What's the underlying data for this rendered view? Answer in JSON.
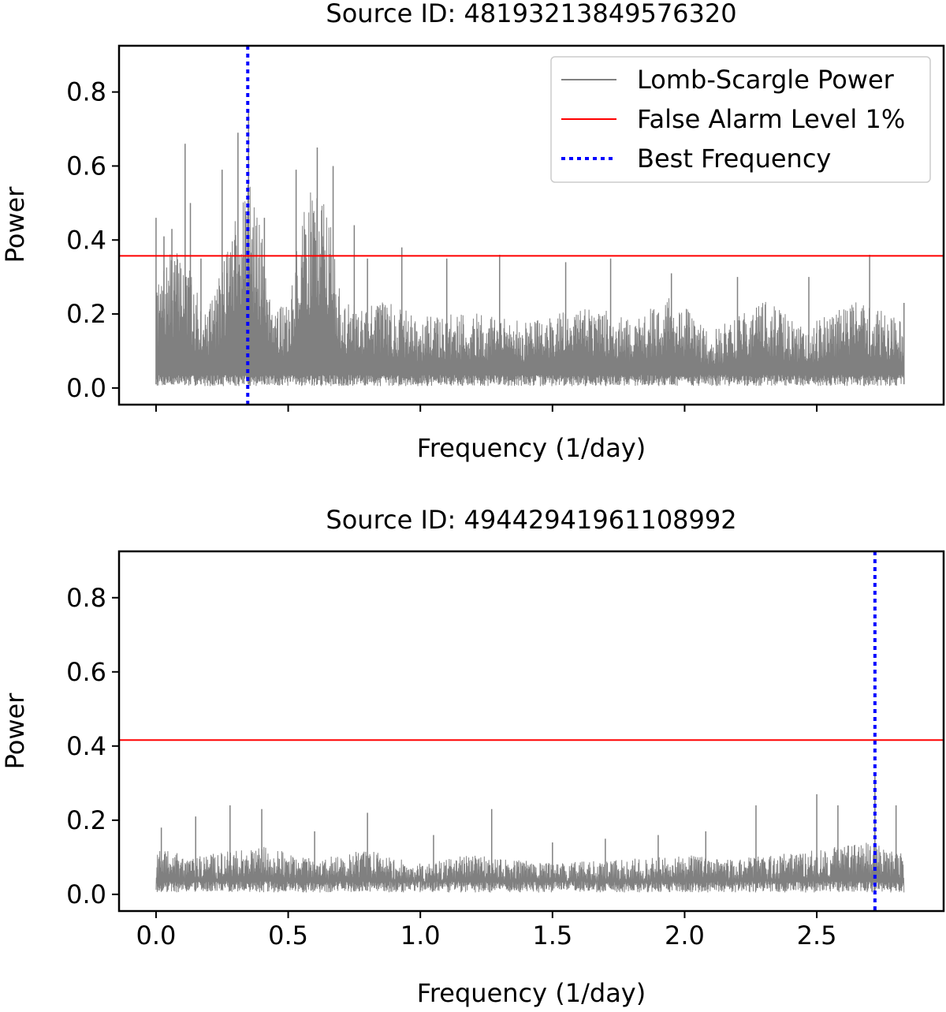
{
  "chart_data": [
    {
      "type": "line",
      "title": "Source ID: 48193213849576320",
      "xlabel": "Frequency (1/day)",
      "ylabel": "Power",
      "xlim": [
        -0.14,
        2.98
      ],
      "ylim": [
        -0.045,
        0.925
      ],
      "xticks": [
        0.0,
        0.5,
        1.0,
        1.5,
        2.0,
        2.5
      ],
      "xticklabels_visible": false,
      "yticks": [
        0.0,
        0.2,
        0.4,
        0.6,
        0.8
      ],
      "ytick_labels": [
        "0.0",
        "0.2",
        "0.4",
        "0.6",
        "0.8"
      ],
      "grid": false,
      "legend_position": "top-right",
      "series": [
        {
          "name": "Lomb-Scargle Power",
          "color": "#808080",
          "x_range": [
            0.0,
            2.83
          ],
          "peaks": [
            {
              "x": 0.0,
              "y": 0.46
            },
            {
              "x": 0.03,
              "y": 0.41
            },
            {
              "x": 0.06,
              "y": 0.43
            },
            {
              "x": 0.11,
              "y": 0.66
            },
            {
              "x": 0.13,
              "y": 0.5
            },
            {
              "x": 0.17,
              "y": 0.35
            },
            {
              "x": 0.25,
              "y": 0.59
            },
            {
              "x": 0.31,
              "y": 0.69
            },
            {
              "x": 0.35,
              "y": 0.75
            },
            {
              "x": 0.41,
              "y": 0.46
            },
            {
              "x": 0.53,
              "y": 0.59
            },
            {
              "x": 0.61,
              "y": 0.65
            },
            {
              "x": 0.67,
              "y": 0.6
            },
            {
              "x": 0.75,
              "y": 0.44
            },
            {
              "x": 0.8,
              "y": 0.35
            },
            {
              "x": 0.93,
              "y": 0.38
            },
            {
              "x": 1.1,
              "y": 0.35
            },
            {
              "x": 1.3,
              "y": 0.36
            },
            {
              "x": 1.55,
              "y": 0.34
            },
            {
              "x": 1.72,
              "y": 0.35
            },
            {
              "x": 1.95,
              "y": 0.31
            },
            {
              "x": 2.2,
              "y": 0.3
            },
            {
              "x": 2.47,
              "y": 0.3
            },
            {
              "x": 2.7,
              "y": 0.36
            },
            {
              "x": 2.83,
              "y": 0.23
            }
          ],
          "envelope": [
            {
              "x": 0.0,
              "y": 0.22
            },
            {
              "x": 0.05,
              "y": 0.3
            },
            {
              "x": 0.1,
              "y": 0.32
            },
            {
              "x": 0.15,
              "y": 0.22
            },
            {
              "x": 0.2,
              "y": 0.18
            },
            {
              "x": 0.25,
              "y": 0.28
            },
            {
              "x": 0.3,
              "y": 0.42
            },
            {
              "x": 0.35,
              "y": 0.48
            },
            {
              "x": 0.4,
              "y": 0.35
            },
            {
              "x": 0.45,
              "y": 0.2
            },
            {
              "x": 0.5,
              "y": 0.18
            },
            {
              "x": 0.55,
              "y": 0.38
            },
            {
              "x": 0.6,
              "y": 0.48
            },
            {
              "x": 0.65,
              "y": 0.42
            },
            {
              "x": 0.7,
              "y": 0.2
            },
            {
              "x": 0.75,
              "y": 0.19
            },
            {
              "x": 0.85,
              "y": 0.2
            },
            {
              "x": 1.0,
              "y": 0.16
            },
            {
              "x": 1.2,
              "y": 0.17
            },
            {
              "x": 1.4,
              "y": 0.15
            },
            {
              "x": 1.6,
              "y": 0.2
            },
            {
              "x": 1.8,
              "y": 0.15
            },
            {
              "x": 1.95,
              "y": 0.21
            },
            {
              "x": 2.1,
              "y": 0.13
            },
            {
              "x": 2.3,
              "y": 0.2
            },
            {
              "x": 2.45,
              "y": 0.14
            },
            {
              "x": 2.65,
              "y": 0.2
            },
            {
              "x": 2.83,
              "y": 0.15
            }
          ]
        },
        {
          "name": "False Alarm Level 1%",
          "color": "#ff0000",
          "type": "hline",
          "y": 0.357
        },
        {
          "name": "Best Frequency",
          "color": "#0000ff",
          "type": "vline",
          "x": 0.347,
          "style": "dotted"
        }
      ]
    },
    {
      "type": "line",
      "title": "Source ID: 49442941961108992",
      "xlabel": "Frequency (1/day)",
      "ylabel": "Power",
      "xlim": [
        -0.14,
        2.98
      ],
      "ylim": [
        -0.045,
        0.925
      ],
      "xticks": [
        0.0,
        0.5,
        1.0,
        1.5,
        2.0,
        2.5
      ],
      "xtick_labels": [
        "0.0",
        "0.5",
        "1.0",
        "1.5",
        "2.0",
        "2.5"
      ],
      "yticks": [
        0.0,
        0.2,
        0.4,
        0.6,
        0.8
      ],
      "ytick_labels": [
        "0.0",
        "0.2",
        "0.4",
        "0.6",
        "0.8"
      ],
      "grid": false,
      "series": [
        {
          "name": "Lomb-Scargle Power",
          "color": "#808080",
          "x_range": [
            0.0,
            2.83
          ],
          "peaks": [
            {
              "x": 0.02,
              "y": 0.18
            },
            {
              "x": 0.15,
              "y": 0.21
            },
            {
              "x": 0.28,
              "y": 0.24
            },
            {
              "x": 0.4,
              "y": 0.23
            },
            {
              "x": 0.6,
              "y": 0.17
            },
            {
              "x": 0.8,
              "y": 0.22
            },
            {
              "x": 1.05,
              "y": 0.16
            },
            {
              "x": 1.27,
              "y": 0.23
            },
            {
              "x": 1.5,
              "y": 0.14
            },
            {
              "x": 1.7,
              "y": 0.15
            },
            {
              "x": 1.9,
              "y": 0.16
            },
            {
              "x": 2.08,
              "y": 0.17
            },
            {
              "x": 2.27,
              "y": 0.24
            },
            {
              "x": 2.5,
              "y": 0.27
            },
            {
              "x": 2.58,
              "y": 0.24
            },
            {
              "x": 2.72,
              "y": 0.32
            },
            {
              "x": 2.8,
              "y": 0.24
            }
          ],
          "envelope": [
            {
              "x": 0.0,
              "y": 0.1
            },
            {
              "x": 0.2,
              "y": 0.09
            },
            {
              "x": 0.4,
              "y": 0.11
            },
            {
              "x": 0.6,
              "y": 0.08
            },
            {
              "x": 0.8,
              "y": 0.1
            },
            {
              "x": 1.0,
              "y": 0.07
            },
            {
              "x": 1.2,
              "y": 0.09
            },
            {
              "x": 1.5,
              "y": 0.07
            },
            {
              "x": 1.8,
              "y": 0.08
            },
            {
              "x": 2.0,
              "y": 0.09
            },
            {
              "x": 2.2,
              "y": 0.08
            },
            {
              "x": 2.5,
              "y": 0.1
            },
            {
              "x": 2.7,
              "y": 0.12
            },
            {
              "x": 2.83,
              "y": 0.09
            }
          ]
        },
        {
          "name": "False Alarm Level 1%",
          "color": "#ff0000",
          "type": "hline",
          "y": 0.416
        },
        {
          "name": "Best Frequency",
          "color": "#0000ff",
          "type": "vline",
          "x": 2.72,
          "style": "dotted"
        }
      ]
    }
  ]
}
